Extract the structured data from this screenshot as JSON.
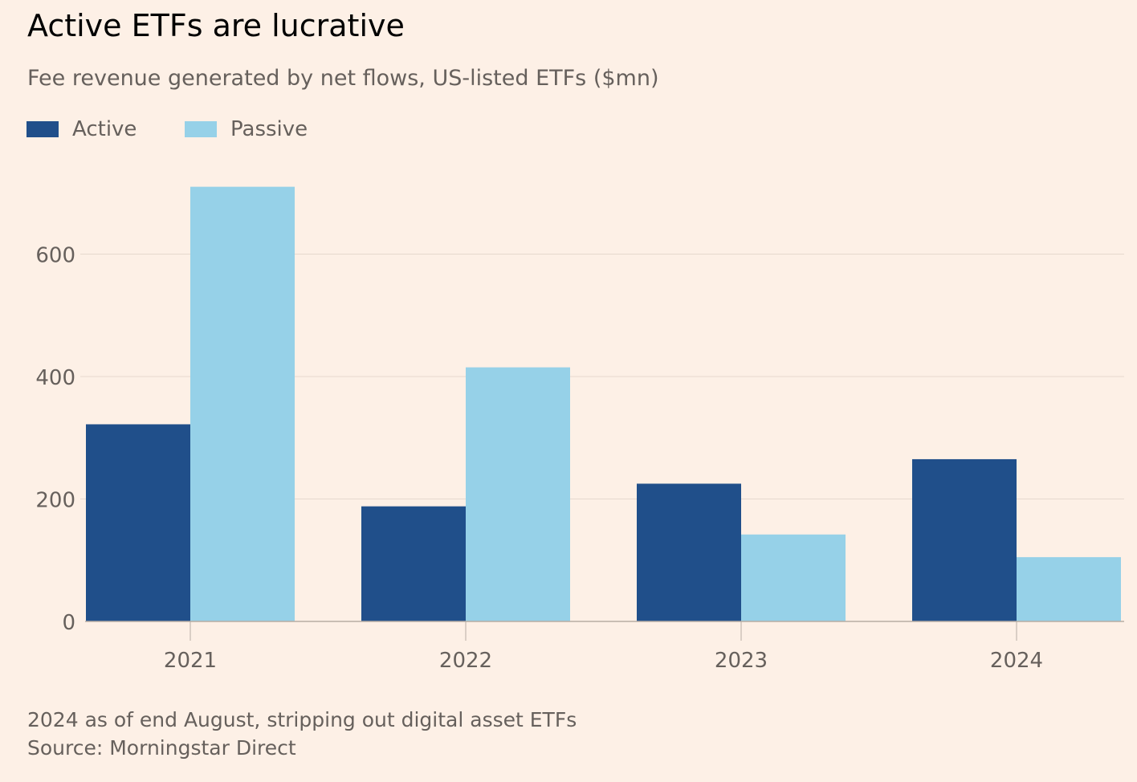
{
  "title": "Active ETFs are lucrative",
  "subtitle": "Fee revenue generated by net flows, US-listed ETFs ($mn)",
  "footnote": "2024 as of end August, stripping out digital asset ETFs",
  "source": "Source: Morningstar Direct",
  "colors": {
    "background": "#FDF0E6",
    "active": "#204F8A",
    "passive": "#96D1E8",
    "grid": "#E6D9CE",
    "axis": "#B8ADA4",
    "tick_text": "#66605C"
  },
  "chart_data": {
    "type": "bar",
    "categories": [
      "2021",
      "2022",
      "2023",
      "2024"
    ],
    "series": [
      {
        "name": "Active",
        "values": [
          322,
          188,
          225,
          265
        ]
      },
      {
        "name": "Passive",
        "values": [
          710,
          415,
          142,
          105
        ]
      }
    ],
    "yticks": [
      0,
      200,
      400,
      600
    ],
    "ylim": [
      0,
      720
    ],
    "grid": true,
    "legend_position": "top-left"
  }
}
